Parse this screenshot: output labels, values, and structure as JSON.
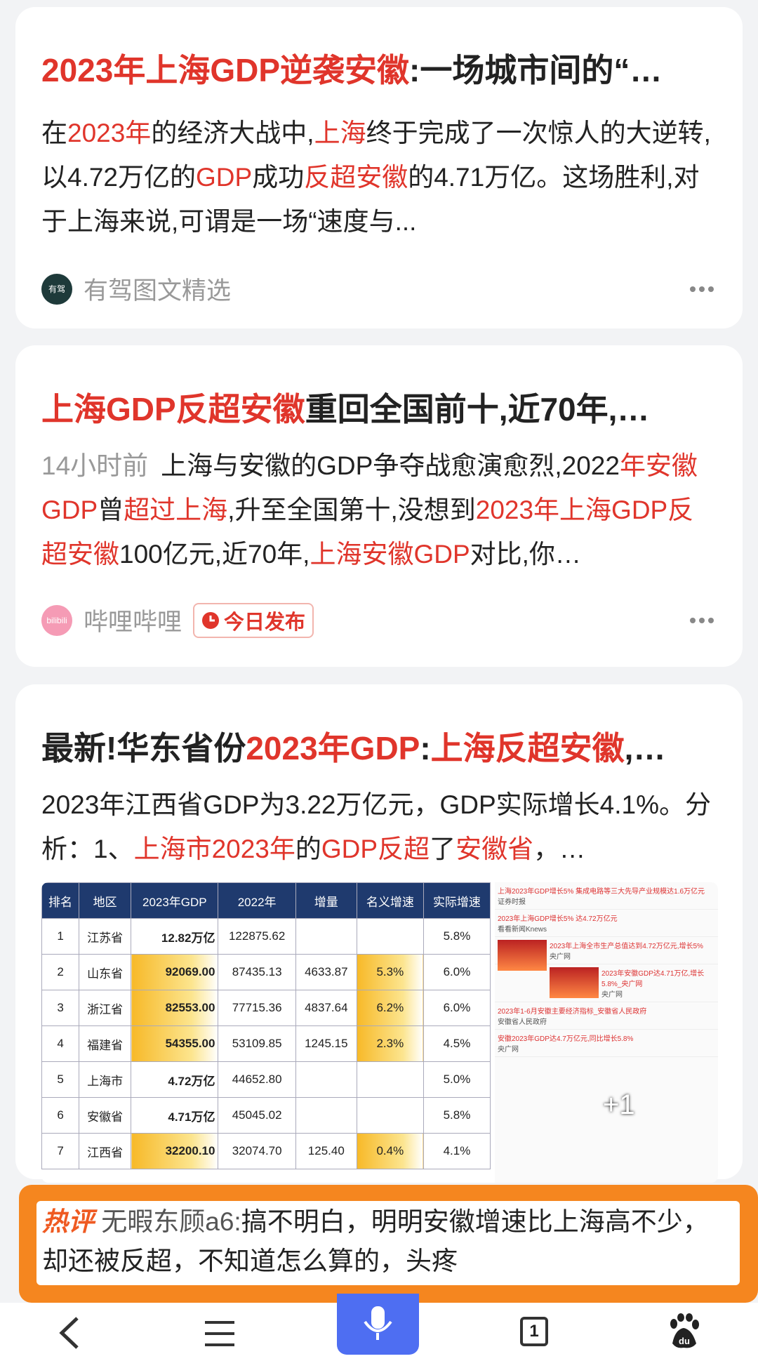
{
  "cards": [
    {
      "title": [
        {
          "text": "2023年上海GDP逆袭安徽",
          "hl": true
        },
        {
          "text": ":一场城市间的“…",
          "hl": false
        }
      ],
      "snippet": [
        {
          "text": "在",
          "hl": false
        },
        {
          "text": "2023年",
          "hl": true
        },
        {
          "text": "的经济大战中,",
          "hl": false
        },
        {
          "text": "上海",
          "hl": true
        },
        {
          "text": "终于完成了一次惊人的大逆转,以4.72万亿的",
          "hl": false
        },
        {
          "text": "GDP",
          "hl": true
        },
        {
          "text": "成功",
          "hl": false
        },
        {
          "text": "反超安徽",
          "hl": true
        },
        {
          "text": "的4.71万亿。这场胜利,对于上海来说,可谓是一场“速度与...",
          "hl": false
        }
      ],
      "source": "有驾图文精选",
      "source_icon": "有驾"
    },
    {
      "title": [
        {
          "text": "上海GDP反超安徽",
          "hl": true
        },
        {
          "text": "重回全国前十,近70年,…",
          "hl": false
        }
      ],
      "time": "14小时前",
      "snippet": [
        {
          "text": "上海与安徽的GDP争夺战愈演愈烈,2022",
          "hl": false
        },
        {
          "text": "年安徽GDP",
          "hl": true
        },
        {
          "text": "曾",
          "hl": false
        },
        {
          "text": "超过上海",
          "hl": true
        },
        {
          "text": ",升至全国第十,没想到",
          "hl": false
        },
        {
          "text": "2023年上海GDP反超安徽",
          "hl": true
        },
        {
          "text": "100亿元,近70年,",
          "hl": false
        },
        {
          "text": "上海安徽GDP",
          "hl": true
        },
        {
          "text": "对比,你…",
          "hl": false
        }
      ],
      "source": "哔哩哔哩",
      "source_icon": "bilibili",
      "badge": "今日发布"
    },
    {
      "title": [
        {
          "text": "最新!华东省份",
          "hl": false
        },
        {
          "text": "2023年GDP",
          "hl": true
        },
        {
          "text": ":",
          "hl": false
        },
        {
          "text": "上海反超安徽",
          "hl": true
        },
        {
          "text": ",…",
          "hl": false
        }
      ],
      "snippet": [
        {
          "text": "2023年江西省GDP为3.22万亿元，GDP实际增长4.1%。分析：1、",
          "hl": false
        },
        {
          "text": "上海市2023年",
          "hl": true
        },
        {
          "text": "的",
          "hl": false
        },
        {
          "text": "GDP反超",
          "hl": true
        },
        {
          "text": "了",
          "hl": false
        },
        {
          "text": "安徽省",
          "hl": true
        },
        {
          "text": "，…",
          "hl": false
        }
      ]
    }
  ],
  "table": {
    "header": [
      "排名",
      "地区",
      "2023年GDP",
      "2022年",
      "增量",
      "名义增速",
      "实际增速"
    ],
    "rows": [
      [
        "1",
        "江苏省",
        "12.82万亿",
        "122875.62",
        null,
        null,
        "5.8%"
      ],
      [
        "2",
        "山东省",
        "92069.00",
        "87435.13",
        "4633.87",
        "5.3%",
        "6.0%"
      ],
      [
        "3",
        "浙江省",
        "82553.00",
        "77715.36",
        "4837.64",
        "6.2%",
        "6.0%"
      ],
      [
        "4",
        "福建省",
        "54355.00",
        "53109.85",
        "1245.15",
        "2.3%",
        "4.5%"
      ],
      [
        "5",
        "上海市",
        "4.72万亿",
        "44652.80",
        null,
        null,
        "5.0%"
      ],
      [
        "6",
        "安徽省",
        "4.71万亿",
        "45045.02",
        null,
        null,
        "5.8%"
      ],
      [
        "7",
        "江西省",
        "32200.10",
        "32074.70",
        "125.40",
        "0.4%",
        "4.1%"
      ]
    ]
  },
  "side_news": [
    {
      "title": "上海2023年GDP增长5% 集成电路等三大先导产业规模达1.6万亿元",
      "source": "证券时报"
    },
    {
      "title": "2023年上海GDP增长5% 达4.72万亿元",
      "source": "看看新闻Knews"
    },
    {
      "title": "2023年上海全市生产总值达到4.72万亿元,增长5%",
      "source": "央广网"
    },
    {
      "title": "2023年安徽GDP达4.71万亿,增长5.8%_央广网",
      "source": "央广网"
    },
    {
      "title": "2023年1-6月安徽主要经济指标_安徽省人民政府",
      "source": "安徽省人民政府"
    },
    {
      "title": "安徽2023年GDP达4.7万亿元,同比增长5.8%",
      "source": "央广网"
    }
  ],
  "more_count": "+1",
  "comment": {
    "label": "热评",
    "user": "无暇东顾a6:",
    "text": "搞不明白，明明安徽增速比上海高不少，却还被反超，不知道怎么算的，头疼"
  },
  "nav": {
    "tabs": "1"
  }
}
